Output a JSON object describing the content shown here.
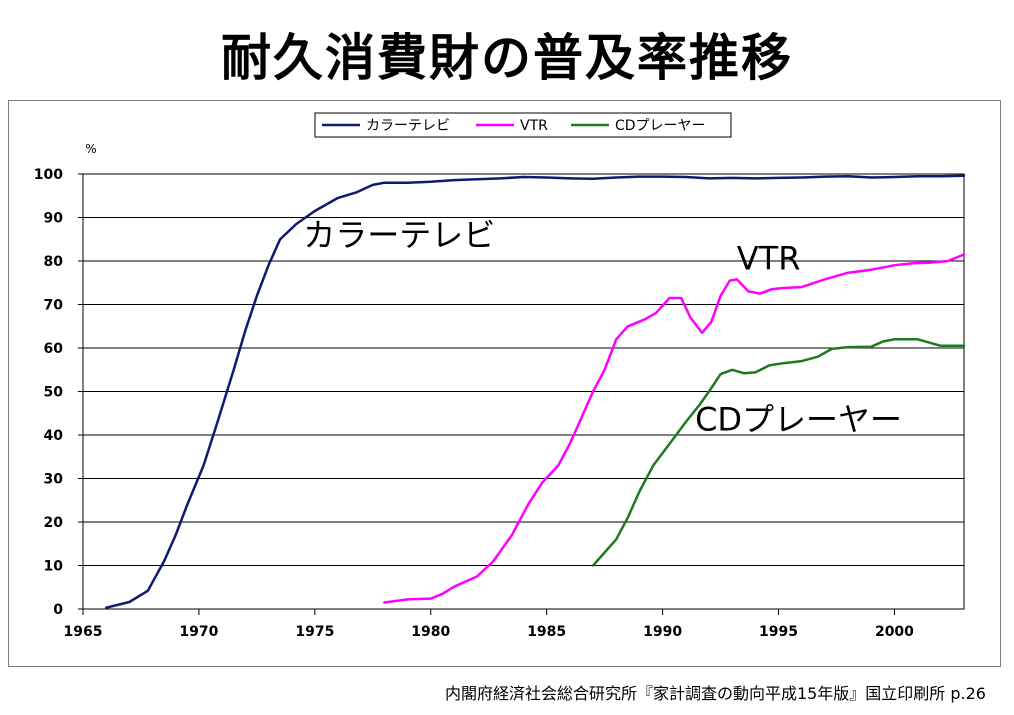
{
  "title": "耐久消費財の普及率推移",
  "source": "内閣府経済社会総合研究所『家計調査の動向平成15年版』国立印刷所 p.26",
  "chart_data": {
    "type": "line",
    "ylabel": "%",
    "xlim": [
      1965,
      2003
    ],
    "ylim": [
      0,
      100
    ],
    "x_ticks": [
      1965,
      1970,
      1975,
      1980,
      1985,
      1990,
      1995,
      2000
    ],
    "y_ticks": [
      0,
      10,
      20,
      30,
      40,
      50,
      60,
      70,
      80,
      90,
      100
    ],
    "grid": true,
    "legend_position": "top-center",
    "series": [
      {
        "name": "カラーテレビ",
        "color": "#0d1a6e",
        "points": [
          [
            1966,
            0.3
          ],
          [
            1967,
            1.6
          ],
          [
            1967.8,
            4.2
          ],
          [
            1968.5,
            11
          ],
          [
            1969,
            17
          ],
          [
            1969.5,
            24
          ],
          [
            1970.2,
            33
          ],
          [
            1970.8,
            43
          ],
          [
            1971.5,
            55
          ],
          [
            1972,
            64
          ],
          [
            1972.5,
            72
          ],
          [
            1973,
            79
          ],
          [
            1973.5,
            85
          ],
          [
            1974.2,
            88.5
          ],
          [
            1975,
            91.5
          ],
          [
            1976,
            94.5
          ],
          [
            1976.8,
            95.8
          ],
          [
            1977.5,
            97.5
          ],
          [
            1978,
            98
          ],
          [
            1979,
            98
          ],
          [
            1980,
            98.2
          ],
          [
            1981,
            98.6
          ],
          [
            1982,
            98.8
          ],
          [
            1983,
            99
          ],
          [
            1984,
            99.3
          ],
          [
            1985,
            99.2
          ],
          [
            1986,
            99
          ],
          [
            1987,
            98.9
          ],
          [
            1988,
            99.2
          ],
          [
            1989,
            99.4
          ],
          [
            1990,
            99.4
          ],
          [
            1991,
            99.3
          ],
          [
            1992,
            99
          ],
          [
            1993,
            99.1
          ],
          [
            1994,
            99
          ],
          [
            1995,
            99.1
          ],
          [
            1996,
            99.2
          ],
          [
            1997,
            99.4
          ],
          [
            1998,
            99.5
          ],
          [
            1999,
            99.2
          ],
          [
            2000,
            99.3
          ],
          [
            2001,
            99.5
          ],
          [
            2002,
            99.5
          ],
          [
            2003,
            99.6
          ]
        ]
      },
      {
        "name": "VTR",
        "color": "#ff00ff",
        "points": [
          [
            1978,
            1.5
          ],
          [
            1979,
            2.2
          ],
          [
            1980,
            2.4
          ],
          [
            1980.5,
            3.5
          ],
          [
            1981,
            5.1
          ],
          [
            1982,
            7.5
          ],
          [
            1982.7,
            11
          ],
          [
            1983.5,
            17
          ],
          [
            1984.2,
            24
          ],
          [
            1984.8,
            29
          ],
          [
            1985.5,
            33
          ],
          [
            1986,
            38
          ],
          [
            1986.5,
            44
          ],
          [
            1987,
            50
          ],
          [
            1987.5,
            55
          ],
          [
            1988,
            62
          ],
          [
            1988.5,
            65
          ],
          [
            1989.2,
            66.5
          ],
          [
            1989.7,
            68
          ],
          [
            1990.3,
            71.5
          ],
          [
            1990.8,
            71.5
          ],
          [
            1991.2,
            67
          ],
          [
            1991.7,
            63.5
          ],
          [
            1992.1,
            66
          ],
          [
            1992.5,
            72
          ],
          [
            1992.9,
            75.5
          ],
          [
            1993.2,
            75.8
          ],
          [
            1993.7,
            73
          ],
          [
            1994.2,
            72.5
          ],
          [
            1994.7,
            73.5
          ],
          [
            1995.2,
            73.8
          ],
          [
            1996,
            74
          ],
          [
            1997,
            75.8
          ],
          [
            1998,
            77.3
          ],
          [
            1999,
            78
          ],
          [
            2000,
            79
          ],
          [
            2000.8,
            79.5
          ],
          [
            2001.5,
            79.6
          ],
          [
            2002.3,
            80
          ],
          [
            2003,
            81.5
          ]
        ]
      },
      {
        "name": "CDプレーヤー",
        "color": "#1e7a1e",
        "points": [
          [
            1987,
            10
          ],
          [
            1987.5,
            13
          ],
          [
            1988,
            16
          ],
          [
            1988.5,
            21
          ],
          [
            1989,
            27
          ],
          [
            1989.6,
            33
          ],
          [
            1990.3,
            38
          ],
          [
            1991,
            43
          ],
          [
            1991.6,
            47
          ],
          [
            1992,
            50
          ],
          [
            1992.5,
            54
          ],
          [
            1993,
            55
          ],
          [
            1993.5,
            54.2
          ],
          [
            1994,
            54.4
          ],
          [
            1994.6,
            56
          ],
          [
            1995.2,
            56.5
          ],
          [
            1996,
            57
          ],
          [
            1996.7,
            58
          ],
          [
            1997.3,
            59.8
          ],
          [
            1998,
            60.2
          ],
          [
            1999,
            60.3
          ],
          [
            1999.5,
            61.5
          ],
          [
            2000,
            62
          ],
          [
            2001,
            62
          ],
          [
            2002,
            60.5
          ],
          [
            2003,
            60.5
          ]
        ]
      }
    ],
    "annotations": [
      {
        "text": "カラーテレビ",
        "x": 1974.5,
        "y": 83.5
      },
      {
        "text": "VTR",
        "x": 1993.2,
        "y": 78
      },
      {
        "text": "CDプレーヤー",
        "x": 1991.4,
        "y": 41
      }
    ]
  }
}
